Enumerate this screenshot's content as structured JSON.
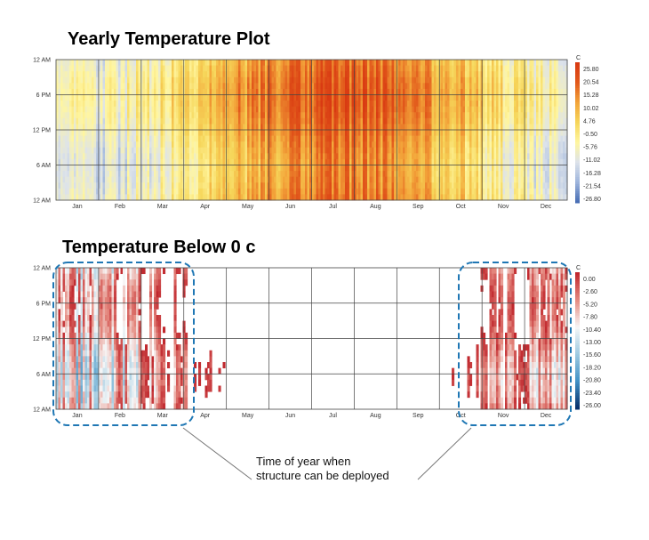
{
  "chart_data": [
    {
      "type": "heatmap",
      "title": "Yearly Temperature Plot",
      "xlabel": "",
      "ylabel": "",
      "x_ticks": [
        "Jan",
        "Feb",
        "Mar",
        "Apr",
        "May",
        "Jun",
        "Jul",
        "Aug",
        "Sep",
        "Oct",
        "Nov",
        "Dec"
      ],
      "y_ticks": [
        "12 AM",
        "6 PM",
        "12 PM",
        "6 AM",
        "12 AM"
      ],
      "colorbar_unit": "C",
      "colorbar_ticks": [
        25.8,
        20.54,
        15.28,
        10.02,
        4.76,
        -0.5,
        -5.76,
        -11.02,
        -16.28,
        -21.54,
        -26.8
      ],
      "colorbar_range": [
        -26.8,
        31.0
      ],
      "colorbar_colors": [
        "#4a6fb5",
        "#9fb6dd",
        "#dde3ea",
        "#fff6a0",
        "#f6d65a",
        "#f3a53a",
        "#e25a1c",
        "#d93a12"
      ],
      "monthly_mean_temperature": [
        -9,
        -6,
        -1,
        6,
        13,
        18,
        21,
        20,
        15,
        8,
        0,
        -6
      ],
      "grid": true
    },
    {
      "type": "heatmap",
      "title": "Temperature Below 0 c",
      "xlabel": "",
      "ylabel": "",
      "x_ticks": [
        "Jan",
        "Feb",
        "Mar",
        "Apr",
        "May",
        "Jun",
        "Jul",
        "Aug",
        "Sep",
        "Oct",
        "Nov",
        "Dec"
      ],
      "y_ticks": [
        "12 AM",
        "6 PM",
        "12 PM",
        "6 AM",
        "12 AM"
      ],
      "colorbar_unit": "C",
      "colorbar_ticks": [
        0.0,
        -2.6,
        -5.2,
        -7.8,
        -10.4,
        -13.0,
        -15.6,
        -18.2,
        -20.8,
        -23.4,
        -26.0
      ],
      "colorbar_range": [
        -26.0,
        0.0
      ],
      "colorbar_colors": [
        "#c0272d",
        "#e58a80",
        "#f7f7f7",
        "#9ecae1",
        "#4292c6",
        "#08306b"
      ],
      "grid": true,
      "annotation": "Time of year when structure can be deployed"
    }
  ]
}
